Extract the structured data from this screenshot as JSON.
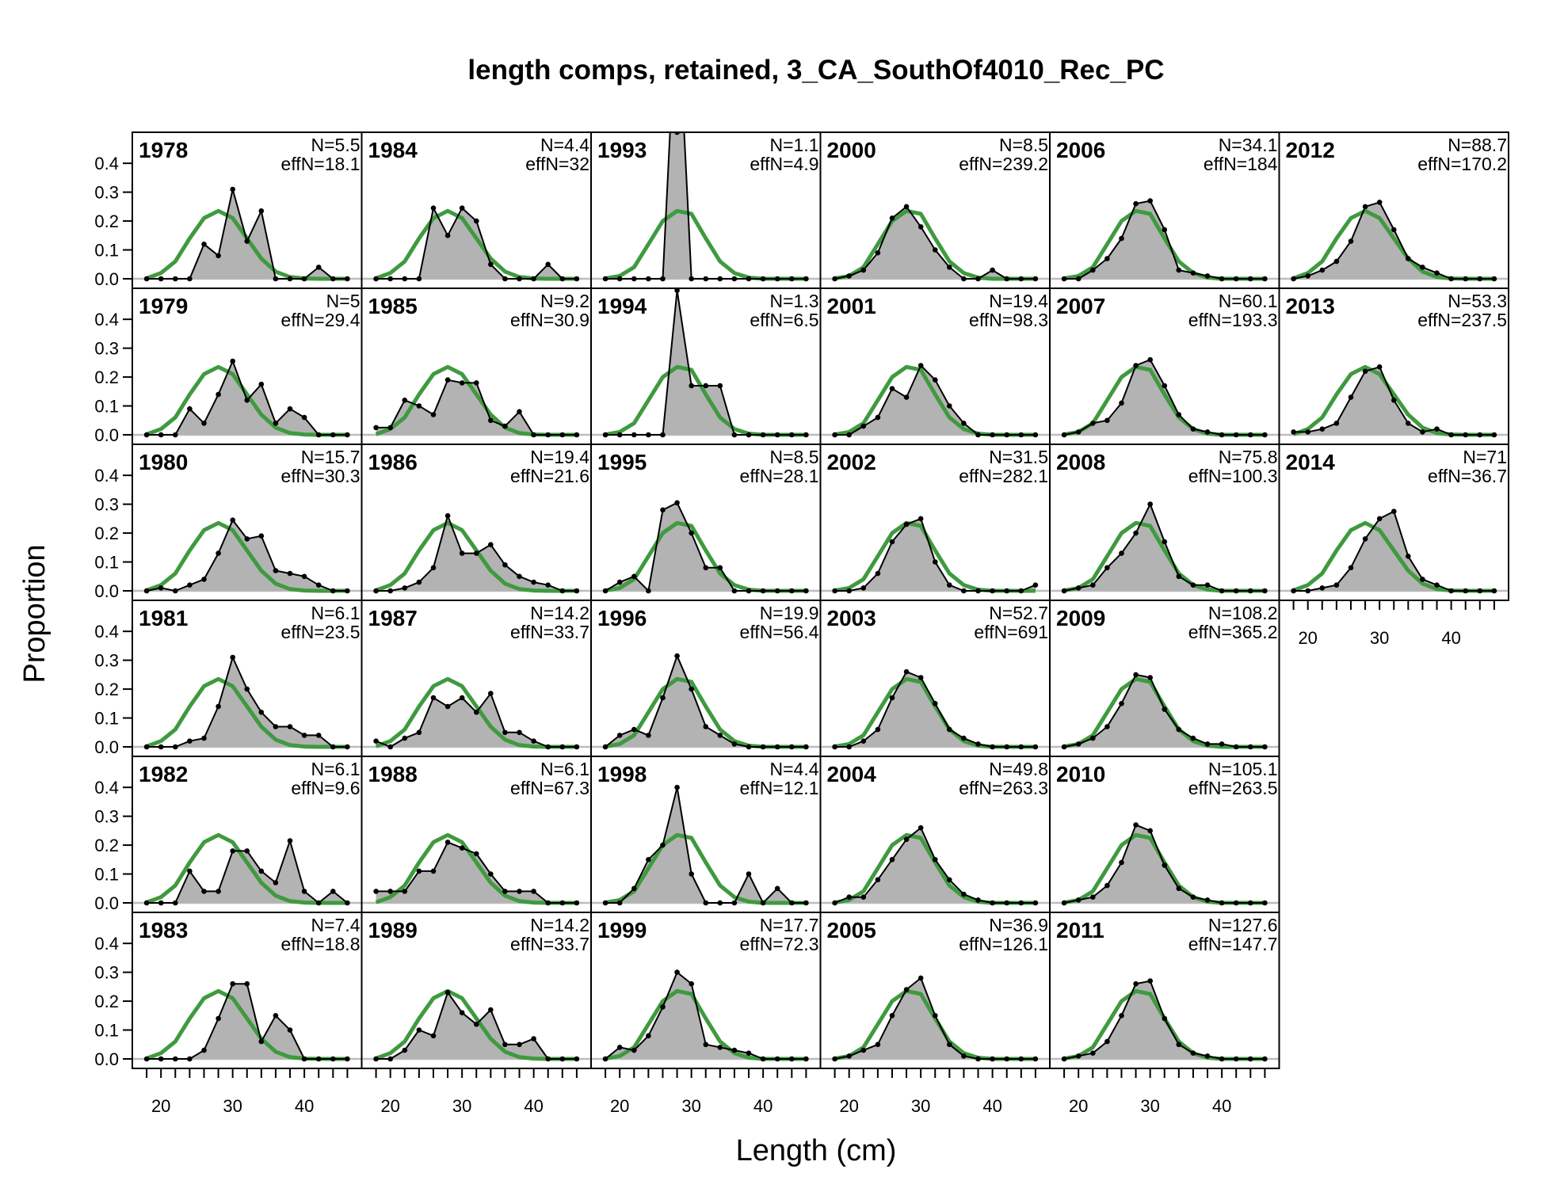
{
  "chart_data": {
    "type": "area",
    "title": "length comps, retained, 3_CA_SouthOf4010_Rec_PC",
    "xlabel": "Length (cm)",
    "ylabel": "Proportion",
    "xlim": [
      16,
      48
    ],
    "ylim": [
      0,
      0.48
    ],
    "x_ticks": [
      20,
      30,
      40
    ],
    "x_tick_labels": [
      "20",
      "30",
      "40"
    ],
    "y_ticks": [
      0,
      0.1,
      0.2,
      0.3,
      0.4
    ],
    "y_tick_labels": [
      "0.0",
      "0.1",
      "0.2",
      "0.3",
      "0.4"
    ],
    "bins": [
      18,
      20,
      22,
      24,
      26,
      28,
      30,
      32,
      34,
      36,
      38,
      40,
      42,
      44,
      46
    ],
    "series_legend": {
      "observed": "observed proportion (grey fill, black line)",
      "expected": "expected proportion (green line)"
    },
    "colors": {
      "fill": "#b3b3b3",
      "observed": "#000000",
      "expected": "#3f9a3f",
      "zero_line": "#bdbdbd"
    },
    "panels": [
      {
        "year": "1978",
        "n": "N=5.5",
        "effn": "effN=18.1",
        "col": 0,
        "row": 0,
        "obs": [
          0,
          0,
          0,
          0,
          0.12,
          0.08,
          0.31,
          0.13,
          0.235,
          0,
          0,
          0,
          0.04,
          0,
          0
        ],
        "exp_type": 0
      },
      {
        "year": "1979",
        "n": "N=5",
        "effn": "effN=29.4",
        "col": 0,
        "row": 1,
        "obs": [
          0,
          0,
          0,
          0.09,
          0.04,
          0.14,
          0.255,
          0.12,
          0.175,
          0.04,
          0.09,
          0.06,
          0,
          0,
          0
        ],
        "exp_type": 0
      },
      {
        "year": "1980",
        "n": "N=15.7",
        "effn": "effN=30.3",
        "col": 0,
        "row": 2,
        "obs": [
          0,
          0.01,
          0,
          0.02,
          0.04,
          0.13,
          0.245,
          0.18,
          0.19,
          0.07,
          0.06,
          0.05,
          0.02,
          0,
          0
        ],
        "exp_type": 0
      },
      {
        "year": "1981",
        "n": "N=6.1",
        "effn": "effN=23.5",
        "col": 0,
        "row": 3,
        "obs": [
          0,
          0,
          0,
          0.02,
          0.03,
          0.14,
          0.31,
          0.2,
          0.12,
          0.07,
          0.07,
          0.04,
          0.04,
          0,
          0
        ],
        "exp_type": 0
      },
      {
        "year": "1982",
        "n": "N=6.1",
        "effn": "effN=9.6",
        "col": 0,
        "row": 4,
        "obs": [
          0,
          0,
          0,
          0.11,
          0.04,
          0.04,
          0.18,
          0.18,
          0.11,
          0.07,
          0.215,
          0.04,
          0,
          0.04,
          0
        ],
        "exp_type": 0
      },
      {
        "year": "1983",
        "n": "N=7.4",
        "effn": "effN=18.8",
        "col": 0,
        "row": 5,
        "obs": [
          0,
          0,
          0,
          0,
          0.03,
          0.14,
          0.26,
          0.26,
          0.06,
          0.15,
          0.1,
          0,
          0,
          0,
          0
        ],
        "exp_type": 0
      },
      {
        "year": "1984",
        "n": "N=4.4",
        "effn": "effN=32",
        "col": 1,
        "row": 0,
        "obs": [
          0,
          0,
          0,
          0,
          0.245,
          0.15,
          0.245,
          0.2,
          0.05,
          0,
          0,
          0,
          0.05,
          0,
          0
        ],
        "exp_type": 0
      },
      {
        "year": "1985",
        "n": "N=9.2",
        "effn": "effN=30.9",
        "col": 1,
        "row": 1,
        "obs": [
          0.025,
          0.025,
          0.12,
          0.1,
          0.07,
          0.19,
          0.18,
          0.18,
          0.05,
          0.03,
          0.08,
          0,
          0,
          0,
          0
        ],
        "exp_type": 0
      },
      {
        "year": "1986",
        "n": "N=19.4",
        "effn": "effN=21.6",
        "col": 1,
        "row": 2,
        "obs": [
          0,
          0,
          0.01,
          0.03,
          0.08,
          0.26,
          0.13,
          0.13,
          0.16,
          0.09,
          0.05,
          0.03,
          0.02,
          0,
          0
        ],
        "exp_type": 0
      },
      {
        "year": "1987",
        "n": "N=14.2",
        "effn": "effN=33.7",
        "col": 1,
        "row": 3,
        "obs": [
          0.02,
          0,
          0.03,
          0.05,
          0.17,
          0.14,
          0.17,
          0.12,
          0.185,
          0.05,
          0.05,
          0.02,
          0,
          0,
          0
        ],
        "exp_type": 0
      },
      {
        "year": "1988",
        "n": "N=6.1",
        "effn": "effN=67.3",
        "col": 1,
        "row": 4,
        "obs": [
          0.04,
          0.04,
          0.04,
          0.11,
          0.11,
          0.21,
          0.19,
          0.17,
          0.1,
          0.04,
          0.04,
          0.04,
          0,
          0,
          0
        ],
        "exp_type": 0
      },
      {
        "year": "1989",
        "n": "N=14.2",
        "effn": "effN=33.7",
        "col": 1,
        "row": 5,
        "obs": [
          0,
          0,
          0.03,
          0.1,
          0.08,
          0.23,
          0.16,
          0.12,
          0.17,
          0.05,
          0.05,
          0.07,
          0,
          0,
          0
        ],
        "exp_type": 0
      },
      {
        "year": "1993",
        "n": "N=1.1",
        "effn": "effN=4.9",
        "col": 2,
        "row": 0,
        "obs": [
          0,
          0,
          0,
          0,
          0,
          1.0,
          0,
          0,
          0,
          0,
          0,
          0,
          0,
          0,
          0
        ],
        "exp_type": 1
      },
      {
        "year": "1994",
        "n": "N=1.3",
        "effn": "effN=6.5",
        "col": 2,
        "row": 1,
        "obs": [
          0,
          0,
          0,
          0,
          0,
          0.5,
          0.17,
          0.17,
          0.17,
          0,
          0,
          0,
          0,
          0,
          0
        ],
        "exp_type": 1
      },
      {
        "year": "1995",
        "n": "N=8.5",
        "effn": "effN=28.1",
        "col": 2,
        "row": 2,
        "obs": [
          0,
          0.03,
          0.05,
          0,
          0.28,
          0.305,
          0.2,
          0.08,
          0.08,
          0,
          0,
          0,
          0,
          0,
          0
        ],
        "exp_type": 1
      },
      {
        "year": "1996",
        "n": "N=19.9",
        "effn": "effN=56.4",
        "col": 2,
        "row": 3,
        "obs": [
          0,
          0.04,
          0.06,
          0.04,
          0.17,
          0.315,
          0.2,
          0.07,
          0.04,
          0.01,
          0,
          0,
          0,
          0,
          0
        ],
        "exp_type": 1
      },
      {
        "year": "1998",
        "n": "N=4.4",
        "effn": "effN=12.1",
        "col": 2,
        "row": 4,
        "obs": [
          0,
          0,
          0.05,
          0.15,
          0.2,
          0.4,
          0.1,
          0,
          0,
          0,
          0.1,
          0,
          0.05,
          0,
          0
        ],
        "exp_type": 1
      },
      {
        "year": "1999",
        "n": "N=17.7",
        "effn": "effN=72.3",
        "col": 2,
        "row": 5,
        "obs": [
          0,
          0.04,
          0.03,
          0.08,
          0.18,
          0.3,
          0.26,
          0.05,
          0.04,
          0.03,
          0.02,
          0,
          0,
          0,
          0
        ],
        "exp_type": 1
      },
      {
        "year": "2000",
        "n": "N=8.5",
        "effn": "effN=239.2",
        "col": 3,
        "row": 0,
        "obs": [
          0,
          0.01,
          0.03,
          0.09,
          0.21,
          0.25,
          0.18,
          0.1,
          0.04,
          0,
          0,
          0.03,
          0,
          0,
          0
        ],
        "exp_type": 1
      },
      {
        "year": "2001",
        "n": "N=19.4",
        "effn": "effN=98.3",
        "col": 3,
        "row": 1,
        "obs": [
          0,
          0,
          0.03,
          0.06,
          0.16,
          0.13,
          0.24,
          0.19,
          0.1,
          0.04,
          0,
          0,
          0,
          0,
          0
        ],
        "exp_type": 1
      },
      {
        "year": "2002",
        "n": "N=31.5",
        "effn": "effN=282.1",
        "col": 3,
        "row": 2,
        "obs": [
          0,
          0,
          0.01,
          0.06,
          0.17,
          0.23,
          0.25,
          0.1,
          0.02,
          0,
          0,
          0,
          0,
          0,
          0.02
        ],
        "exp_type": 1
      },
      {
        "year": "2003",
        "n": "N=52.7",
        "effn": "effN=691",
        "col": 3,
        "row": 3,
        "obs": [
          0,
          0,
          0.02,
          0.06,
          0.17,
          0.26,
          0.24,
          0.15,
          0.06,
          0.03,
          0.01,
          0,
          0,
          0,
          0
        ],
        "exp_type": 1
      },
      {
        "year": "2004",
        "n": "N=49.8",
        "effn": "effN=263.3",
        "col": 3,
        "row": 4,
        "obs": [
          0,
          0.02,
          0.02,
          0.08,
          0.15,
          0.22,
          0.26,
          0.15,
          0.08,
          0.03,
          0.01,
          0,
          0,
          0,
          0
        ],
        "exp_type": 1
      },
      {
        "year": "2005",
        "n": "N=36.9",
        "effn": "effN=126.1",
        "col": 3,
        "row": 5,
        "obs": [
          0,
          0.01,
          0.03,
          0.05,
          0.15,
          0.24,
          0.28,
          0.15,
          0.05,
          0.01,
          0,
          0,
          0,
          0,
          0
        ],
        "exp_type": 1
      },
      {
        "year": "2006",
        "n": "N=34.1",
        "effn": "effN=184",
        "col": 4,
        "row": 0,
        "obs": [
          0,
          0,
          0.03,
          0.07,
          0.14,
          0.26,
          0.27,
          0.17,
          0.03,
          0.02,
          0.01,
          0,
          0,
          0,
          0
        ],
        "exp_type": 1
      },
      {
        "year": "2007",
        "n": "N=60.1",
        "effn": "effN=193.3",
        "col": 4,
        "row": 1,
        "obs": [
          0,
          0.01,
          0.04,
          0.05,
          0.11,
          0.24,
          0.26,
          0.17,
          0.07,
          0.02,
          0.01,
          0,
          0,
          0,
          0
        ],
        "exp_type": 1
      },
      {
        "year": "2008",
        "n": "N=75.8",
        "effn": "effN=100.3",
        "col": 4,
        "row": 2,
        "obs": [
          0,
          0.01,
          0.02,
          0.08,
          0.13,
          0.2,
          0.3,
          0.17,
          0.05,
          0.02,
          0.02,
          0,
          0,
          0,
          0
        ],
        "exp_type": 1
      },
      {
        "year": "2009",
        "n": "N=108.2",
        "effn": "effN=365.2",
        "col": 4,
        "row": 3,
        "obs": [
          0,
          0.01,
          0.03,
          0.07,
          0.15,
          0.25,
          0.24,
          0.13,
          0.06,
          0.03,
          0.01,
          0.01,
          0,
          0,
          0
        ],
        "exp_type": 1
      },
      {
        "year": "2010",
        "n": "N=105.1",
        "effn": "effN=263.5",
        "col": 4,
        "row": 4,
        "obs": [
          0,
          0.01,
          0.02,
          0.06,
          0.14,
          0.27,
          0.25,
          0.13,
          0.05,
          0.02,
          0.01,
          0,
          0,
          0,
          0
        ],
        "exp_type": 1
      },
      {
        "year": "2011",
        "n": "N=127.6",
        "effn": "effN=147.7",
        "col": 4,
        "row": 5,
        "obs": [
          0,
          0.01,
          0.02,
          0.06,
          0.15,
          0.26,
          0.27,
          0.14,
          0.05,
          0.02,
          0.01,
          0,
          0,
          0,
          0
        ],
        "exp_type": 1
      },
      {
        "year": "2012",
        "n": "N=88.7",
        "effn": "effN=170.2",
        "col": 5,
        "row": 0,
        "obs": [
          0,
          0.01,
          0.03,
          0.06,
          0.13,
          0.25,
          0.265,
          0.17,
          0.07,
          0.04,
          0.02,
          0,
          0,
          0,
          0
        ],
        "exp_type": 0
      },
      {
        "year": "2013",
        "n": "N=53.3",
        "effn": "effN=237.5",
        "col": 5,
        "row": 1,
        "obs": [
          0.01,
          0.01,
          0.02,
          0.04,
          0.13,
          0.22,
          0.235,
          0.12,
          0.04,
          0.01,
          0.02,
          0,
          0,
          0,
          0
        ],
        "exp_type": 0
      },
      {
        "year": "2014",
        "n": "N=71",
        "effn": "effN=36.7",
        "col": 5,
        "row": 2,
        "obs": [
          0,
          0,
          0.01,
          0.02,
          0.08,
          0.18,
          0.25,
          0.275,
          0.12,
          0.04,
          0.02,
          0,
          0,
          0,
          0
        ],
        "exp_type": 0
      }
    ],
    "expected_curves": [
      [
        0.002,
        0.02,
        0.06,
        0.14,
        0.21,
        0.235,
        0.21,
        0.14,
        0.07,
        0.025,
        0.006,
        0.001,
        0.0,
        0.0,
        0.0
      ],
      [
        0.001,
        0.01,
        0.04,
        0.12,
        0.2,
        0.235,
        0.225,
        0.14,
        0.06,
        0.02,
        0.004,
        0.0,
        0.0,
        0.0,
        0.0
      ]
    ]
  }
}
